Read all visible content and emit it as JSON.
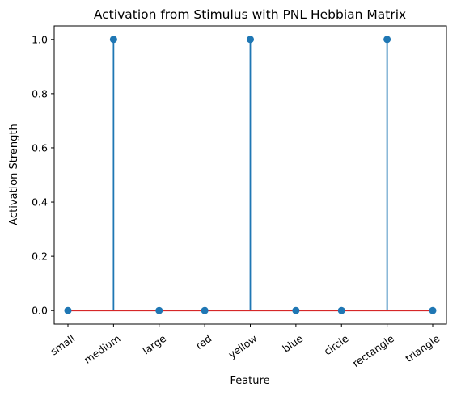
{
  "chart_data": {
    "type": "stem",
    "title": "Activation from Stimulus with PNL Hebbian Matrix",
    "xlabel": "Feature",
    "ylabel": "Activation Strength",
    "categories": [
      "small",
      "medium",
      "large",
      "red",
      "yellow",
      "blue",
      "circle",
      "rectangle",
      "triangle"
    ],
    "values": [
      0.0,
      1.0,
      0.0,
      0.0,
      1.0,
      0.0,
      0.0,
      1.0,
      0.0
    ],
    "yticks": [
      "0.0",
      "0.2",
      "0.4",
      "0.6",
      "0.8",
      "1.0"
    ],
    "ylim": [
      -0.05,
      1.05
    ],
    "grid": false,
    "colors": {
      "stem": "#1f77b4",
      "marker": "#1f77b4",
      "baseline": "#d62728"
    }
  }
}
